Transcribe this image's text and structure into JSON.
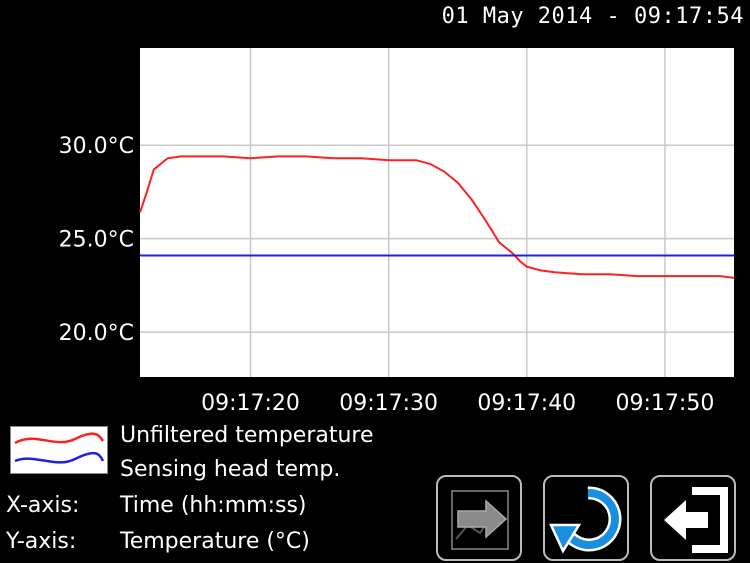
{
  "header": {
    "datetime": "01 May 2014 - 09:17:54"
  },
  "legend": {
    "items": [
      {
        "label": "Unfiltered temperature",
        "color": "#ff2020"
      },
      {
        "label": "Sensing head temp.",
        "color": "#2020e0"
      }
    ]
  },
  "axes_info": {
    "x_label": "X-axis:",
    "x_value": "Time (hh:mm:ss)",
    "y_label": "Y-axis:",
    "y_value": "Temperature (°C)"
  },
  "buttons": [
    {
      "icon": "chart-export-icon"
    },
    {
      "icon": "refresh-icon"
    },
    {
      "icon": "exit-icon"
    }
  ],
  "chart_data": {
    "type": "line",
    "x_range_s": [
      12,
      55
    ],
    "ylim": [
      17.6,
      35.2
    ],
    "yticks": [
      {
        "value": 20,
        "label": "20.0°C"
      },
      {
        "value": 25,
        "label": "25.0°C"
      },
      {
        "value": 30,
        "label": "30.0°C"
      }
    ],
    "xticks": [
      {
        "value": 20,
        "label": "09:17:20"
      },
      {
        "value": 30,
        "label": "09:17:30"
      },
      {
        "value": 40,
        "label": "09:17:40"
      },
      {
        "value": 50,
        "label": "09:17:50"
      }
    ],
    "grid": true,
    "series": [
      {
        "name": "Unfiltered temperature",
        "color": "#ff2020",
        "x": [
          12,
          12.5,
          13,
          14,
          15,
          16,
          18,
          20,
          22,
          24,
          26,
          28,
          30,
          32,
          33,
          34,
          35,
          36,
          37,
          38,
          39,
          39.5,
          40,
          41,
          42,
          44,
          46,
          48,
          50,
          52,
          54,
          55
        ],
        "y": [
          26.4,
          27.5,
          28.7,
          29.3,
          29.4,
          29.4,
          29.4,
          29.3,
          29.4,
          29.4,
          29.3,
          29.3,
          29.2,
          29.2,
          29.0,
          28.6,
          28.0,
          27.1,
          26.0,
          24.8,
          24.2,
          23.8,
          23.5,
          23.3,
          23.2,
          23.1,
          23.1,
          23.0,
          23.0,
          23.0,
          23.0,
          22.9
        ]
      },
      {
        "name": "Sensing head temp.",
        "color": "#2020e0",
        "x": [
          12,
          55
        ],
        "y": [
          24.1,
          24.1
        ]
      }
    ]
  }
}
